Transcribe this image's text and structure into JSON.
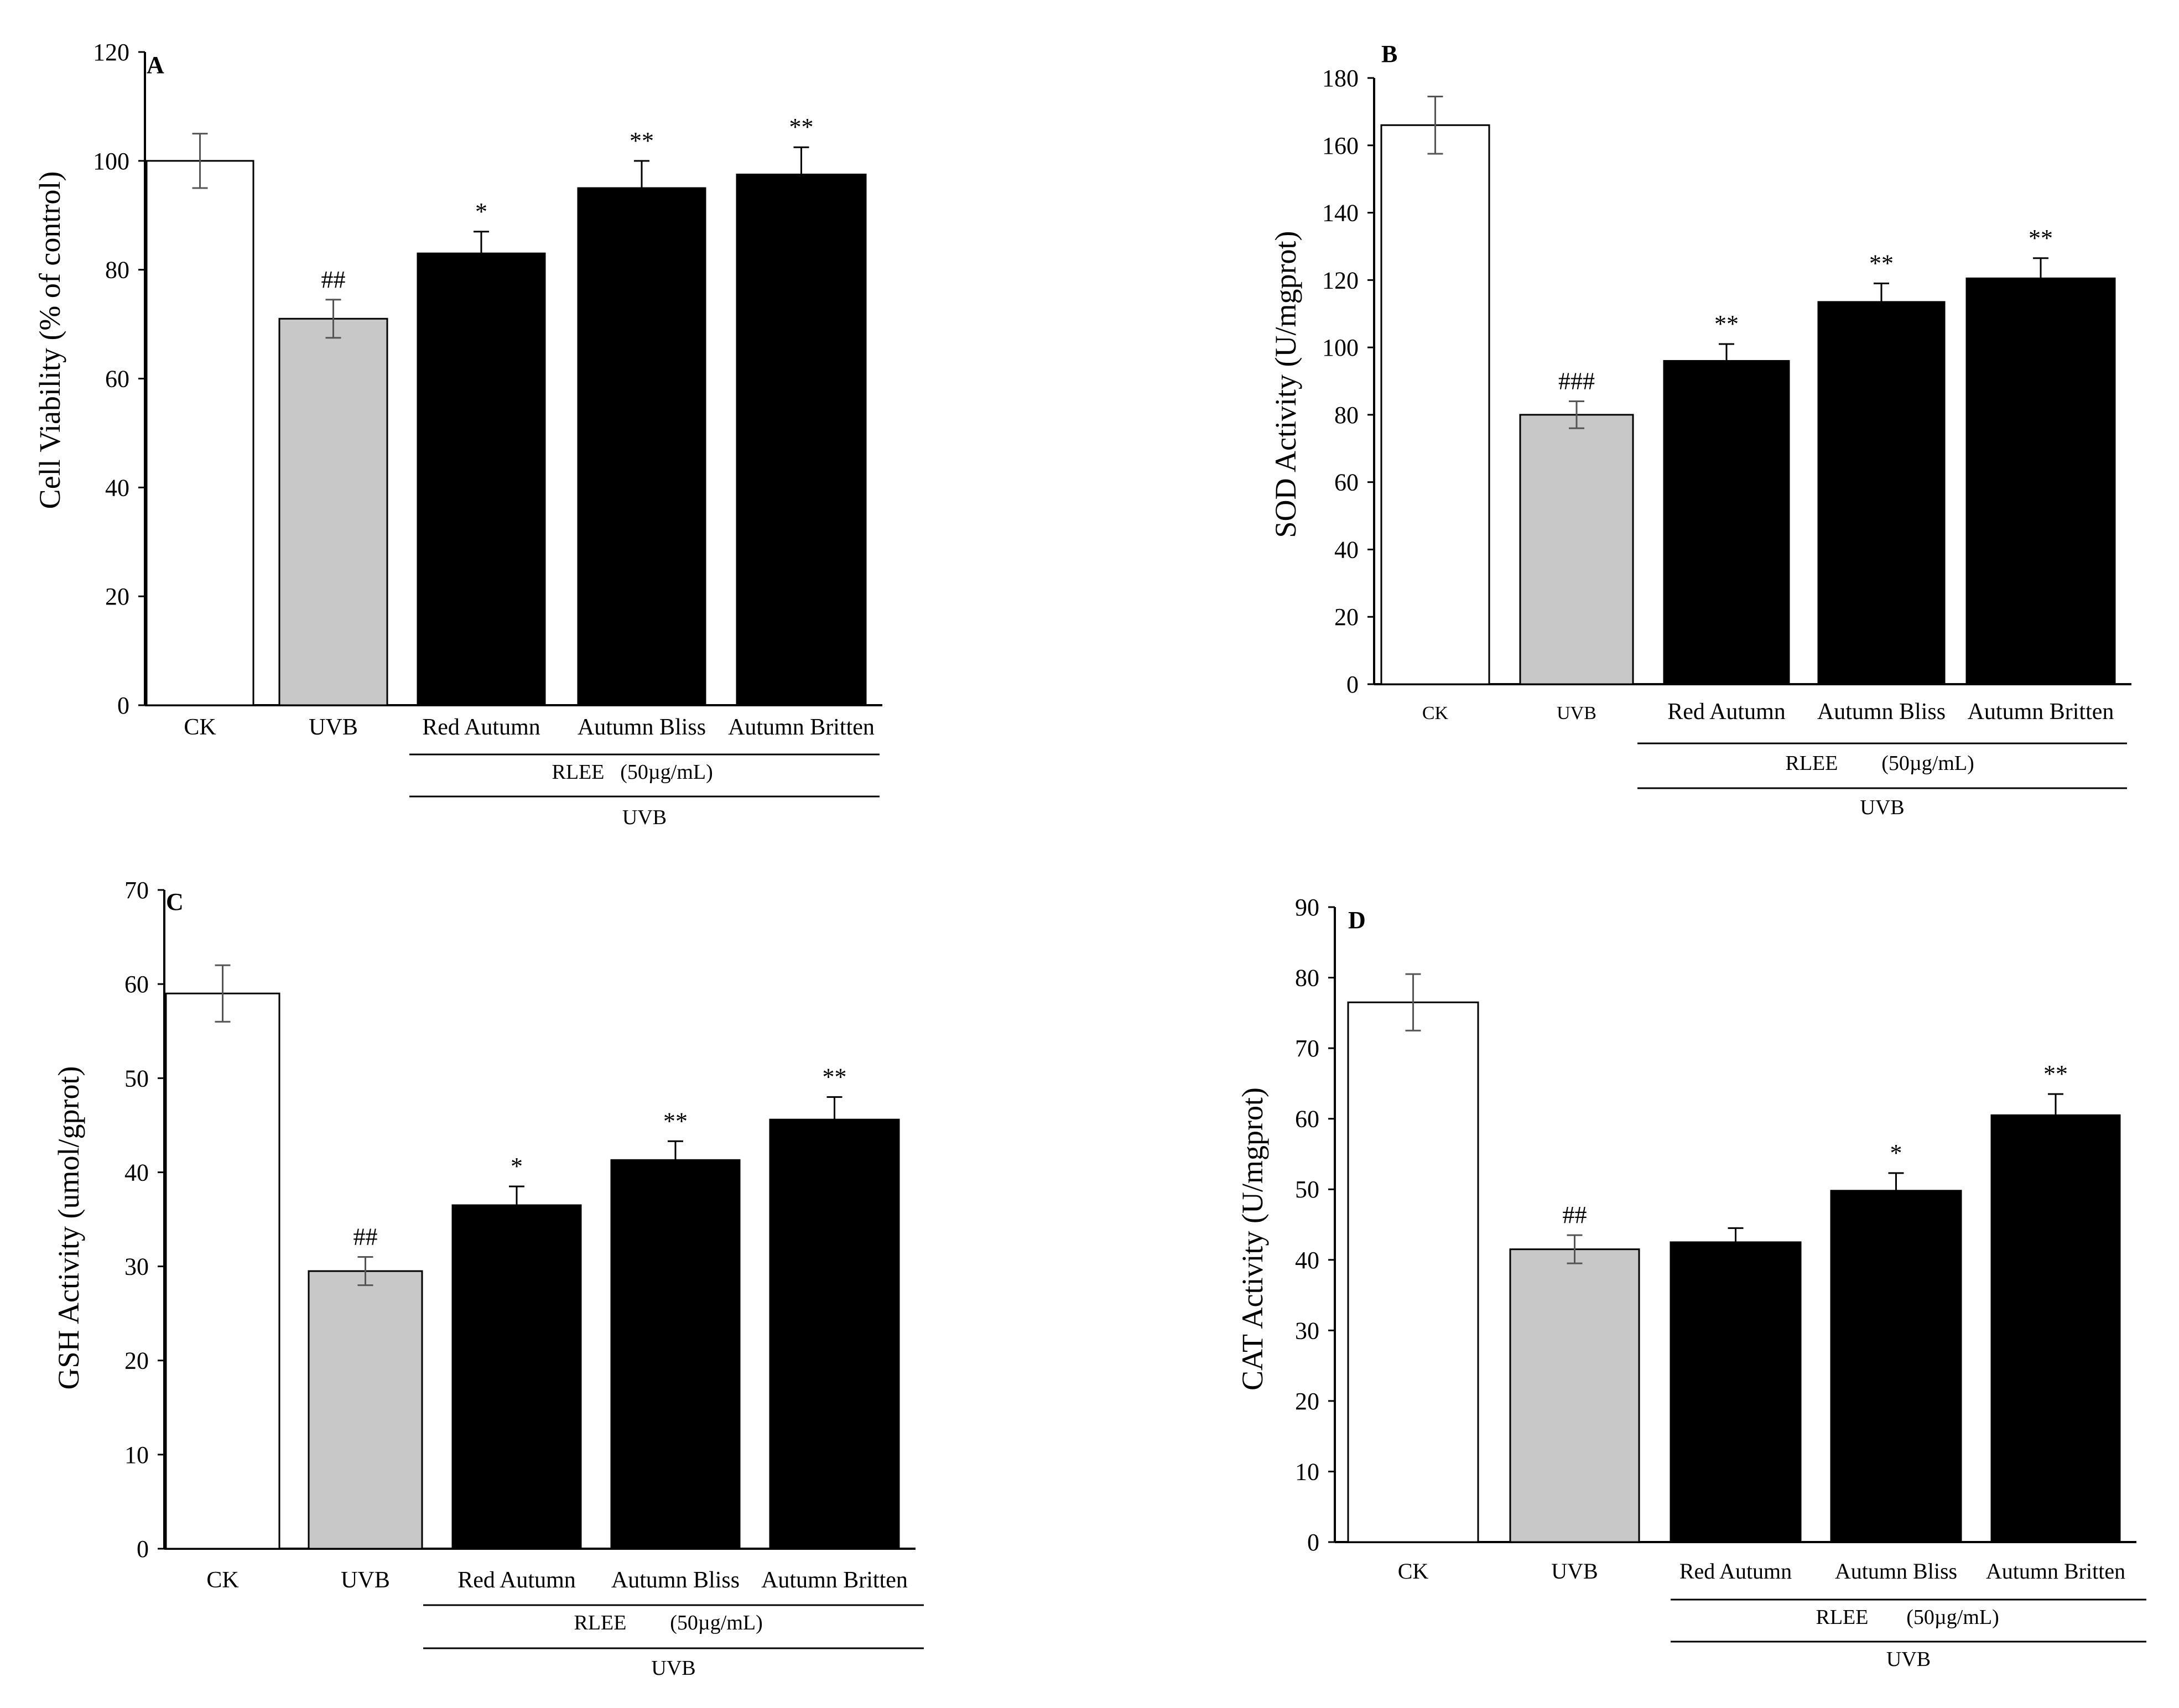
{
  "figure": {
    "group_label_prefix": "RLEE",
    "group_label_conc": "(50µg/mL)",
    "treatment_label": "UVB"
  },
  "chart_data": [
    {
      "type": "bar",
      "panel": "A",
      "ylabel": "Cell Viability  (% of control)",
      "ylim": [
        0,
        120
      ],
      "yticks": [
        0,
        20,
        40,
        60,
        80,
        100,
        120
      ],
      "categories": [
        "CK",
        "UVB",
        "Red Autumn",
        "Autumn Bliss",
        "Autumn Britten"
      ],
      "values": [
        100,
        71,
        83,
        95,
        97.5
      ],
      "errors": [
        5,
        3.5,
        4,
        5,
        5
      ],
      "annotations": [
        "",
        "##",
        "*",
        "**",
        "**"
      ],
      "colors": [
        "#ffffff",
        "#c8c8c8",
        "#000000",
        "#000000",
        "#000000"
      ]
    },
    {
      "type": "bar",
      "panel": "B",
      "ylabel": "SOD Activity  (U/mgprot)",
      "ylim": [
        0,
        180
      ],
      "yticks": [
        0,
        20,
        40,
        60,
        80,
        100,
        120,
        140,
        160,
        180
      ],
      "categories": [
        "CK",
        "UVB",
        "Red Autumn",
        "Autumn Bliss",
        "Autumn Britten"
      ],
      "values": [
        166,
        80,
        96,
        113.5,
        120.5
      ],
      "errors": [
        8.5,
        4,
        5,
        5.5,
        6
      ],
      "annotations": [
        "",
        "###",
        "**",
        "**",
        "**"
      ],
      "colors": [
        "#ffffff",
        "#c8c8c8",
        "#000000",
        "#000000",
        "#000000"
      ]
    },
    {
      "type": "bar",
      "panel": "C",
      "ylabel": "GSH Activity  (umol/gprot)",
      "ylim": [
        0,
        70
      ],
      "yticks": [
        0,
        10,
        20,
        30,
        40,
        50,
        60,
        70
      ],
      "categories": [
        "CK",
        "UVB",
        "Red Autumn",
        "Autumn Bliss",
        "Autumn Britten"
      ],
      "values": [
        59,
        29.5,
        36.5,
        41.3,
        45.6
      ],
      "errors": [
        3,
        1.5,
        2,
        2,
        2.4
      ],
      "annotations": [
        "",
        "##",
        "*",
        "**",
        "**"
      ],
      "colors": [
        "#ffffff",
        "#c8c8c8",
        "#000000",
        "#000000",
        "#000000"
      ]
    },
    {
      "type": "bar",
      "panel": "D",
      "ylabel": "CAT Activity  (U/mgprot)",
      "ylim": [
        0,
        90
      ],
      "yticks": [
        0,
        10,
        20,
        30,
        40,
        50,
        60,
        70,
        80,
        90
      ],
      "categories": [
        "CK",
        "UVB",
        "Red Autumn",
        "Autumn Bliss",
        "Autumn Britten"
      ],
      "values": [
        76.5,
        41.5,
        42.5,
        49.8,
        60.5
      ],
      "errors": [
        4,
        2,
        2,
        2.5,
        3
      ],
      "annotations": [
        "",
        "##",
        "",
        "*",
        "**"
      ],
      "colors": [
        "#ffffff",
        "#c8c8c8",
        "#000000",
        "#000000",
        "#000000"
      ]
    }
  ]
}
